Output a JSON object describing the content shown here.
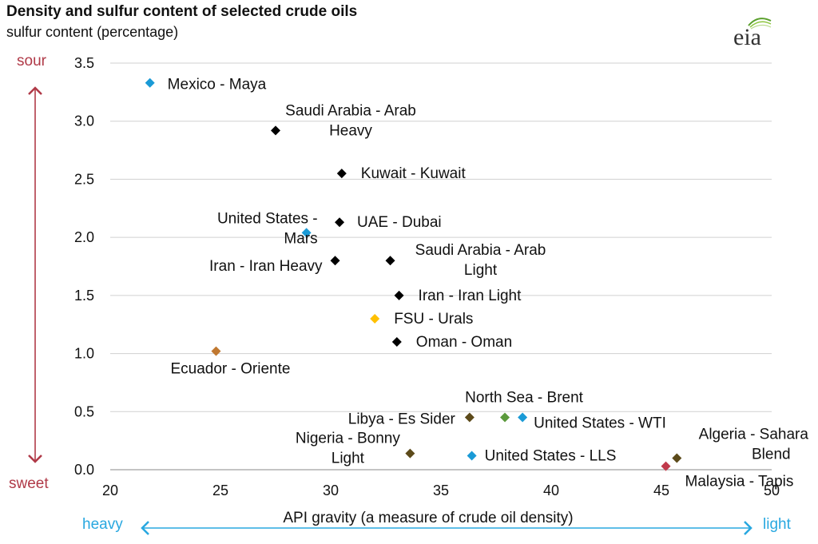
{
  "chart_data": {
    "type": "scatter",
    "title": "Density and sulfur content of selected crude oils",
    "ylabel": "sulfur content (percentage)",
    "xlabel": "API gravity (a measure of crude oil density)",
    "xlim": [
      20,
      50
    ],
    "ylim": [
      0,
      3.5
    ],
    "x_ticks": [
      "20",
      "25",
      "30",
      "35",
      "40",
      "45",
      "50"
    ],
    "y_ticks": [
      "0.0",
      "0.5",
      "1.0",
      "1.5",
      "2.0",
      "2.5",
      "3.0",
      "3.5"
    ],
    "grid": "horizontal",
    "y_top_label": "sour",
    "y_bottom_label": "sweet",
    "x_left_label": "heavy",
    "x_right_label": "light",
    "colors": {
      "sour_sweet_arrow": "#b03a48",
      "heavy_light_arrow": "#29a8e0",
      "grid": "#d0d0d0"
    },
    "points": [
      {
        "label": [
          "Mexico - Maya"
        ],
        "x": 21.8,
        "y": 3.33,
        "color": "#1a9ad6"
      },
      {
        "label": [
          "Saudi Arabia - Arab",
          "Heavy"
        ],
        "x": 27.5,
        "y": 2.92,
        "color": "#000000"
      },
      {
        "label": [
          "Kuwait - Kuwait"
        ],
        "x": 30.5,
        "y": 2.55,
        "color": "#000000"
      },
      {
        "label": [
          "United States -",
          "Mars"
        ],
        "x": 28.9,
        "y": 2.04,
        "color": "#1a9ad6"
      },
      {
        "label": [
          "UAE - Dubai"
        ],
        "x": 30.4,
        "y": 2.13,
        "color": "#000000"
      },
      {
        "label": [
          "Iran - Iran Heavy"
        ],
        "x": 30.2,
        "y": 1.8,
        "color": "#000000"
      },
      {
        "label": [
          "Saudi Arabia - Arab",
          "Light"
        ],
        "x": 32.7,
        "y": 1.8,
        "color": "#000000"
      },
      {
        "label": [
          "Iran - Iran Light"
        ],
        "x": 33.1,
        "y": 1.5,
        "color": "#000000"
      },
      {
        "label": [
          "FSU - Urals"
        ],
        "x": 32.0,
        "y": 1.3,
        "color": "#ffc000"
      },
      {
        "label": [
          "Oman - Oman"
        ],
        "x": 33.0,
        "y": 1.1,
        "color": "#000000"
      },
      {
        "label": [
          "Ecuador - Oriente"
        ],
        "x": 24.8,
        "y": 1.02,
        "color": "#c07830"
      },
      {
        "label": [
          "North Sea - Brent"
        ],
        "x": 37.9,
        "y": 0.45,
        "color": "#5b9a3c"
      },
      {
        "label": [
          "Libya - Es Sider"
        ],
        "x": 36.3,
        "y": 0.45,
        "color": "#5c4a1a"
      },
      {
        "label": [
          "United States - WTI"
        ],
        "x": 38.7,
        "y": 0.45,
        "color": "#1a9ad6"
      },
      {
        "label": [
          "Nigeria - Bonny",
          "Light"
        ],
        "x": 33.6,
        "y": 0.14,
        "color": "#5c4a1a"
      },
      {
        "label": [
          "United States - LLS"
        ],
        "x": 36.4,
        "y": 0.12,
        "color": "#1a9ad6"
      },
      {
        "label": [
          "Algeria - Sahara",
          "Blend"
        ],
        "x": 45.7,
        "y": 0.1,
        "color": "#5c4a1a"
      },
      {
        "label": [
          "Malaysia - Tapis"
        ],
        "x": 45.2,
        "y": 0.03,
        "color": "#c0394b"
      }
    ]
  },
  "logo": {
    "text": "eia",
    "color": "#5aa02c"
  }
}
